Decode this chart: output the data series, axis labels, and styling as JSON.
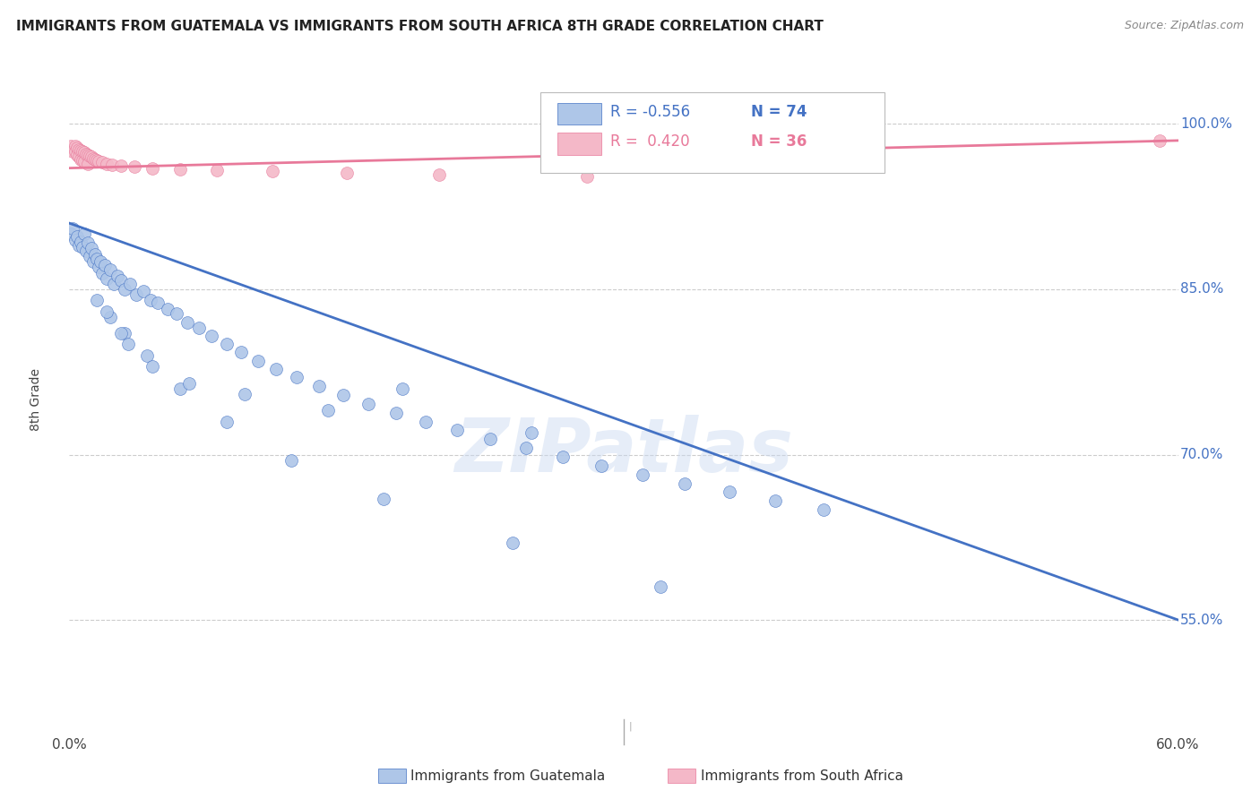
{
  "title": "IMMIGRANTS FROM GUATEMALA VS IMMIGRANTS FROM SOUTH AFRICA 8TH GRADE CORRELATION CHART",
  "source_text": "Source: ZipAtlas.com",
  "xlabel_bottom_left": "0.0%",
  "xlabel_bottom_right": "60.0%",
  "ylabel": "8th Grade",
  "y_ticks": [
    0.55,
    0.7,
    0.85,
    1.0
  ],
  "y_tick_labels": [
    "55.0%",
    "70.0%",
    "85.0%",
    "100.0%"
  ],
  "x_range": [
    0.0,
    0.6
  ],
  "y_range": [
    0.46,
    1.04
  ],
  "blue_label": "Immigrants from Guatemala",
  "pink_label": "Immigrants from South Africa",
  "blue_R": "-0.556",
  "blue_N": "74",
  "pink_R": "0.420",
  "pink_N": "36",
  "blue_color": "#aec6e8",
  "pink_color": "#f4b8c8",
  "blue_line_color": "#4472c4",
  "pink_line_color": "#e8799a",
  "blue_scatter_x": [
    0.001,
    0.002,
    0.003,
    0.004,
    0.005,
    0.006,
    0.007,
    0.008,
    0.009,
    0.01,
    0.011,
    0.012,
    0.013,
    0.014,
    0.015,
    0.016,
    0.017,
    0.018,
    0.019,
    0.02,
    0.022,
    0.024,
    0.026,
    0.028,
    0.03,
    0.033,
    0.036,
    0.04,
    0.044,
    0.048,
    0.053,
    0.058,
    0.064,
    0.07,
    0.077,
    0.085,
    0.093,
    0.102,
    0.112,
    0.123,
    0.135,
    0.148,
    0.162,
    0.177,
    0.193,
    0.21,
    0.228,
    0.247,
    0.267,
    0.288,
    0.31,
    0.333,
    0.357,
    0.382,
    0.408,
    0.015,
    0.022,
    0.03,
    0.042,
    0.06,
    0.085,
    0.12,
    0.17,
    0.24,
    0.32,
    0.25,
    0.18,
    0.14,
    0.095,
    0.065,
    0.045,
    0.032,
    0.028,
    0.02
  ],
  "blue_scatter_y": [
    0.9,
    0.905,
    0.895,
    0.898,
    0.89,
    0.893,
    0.888,
    0.9,
    0.885,
    0.892,
    0.88,
    0.887,
    0.875,
    0.882,
    0.878,
    0.87,
    0.875,
    0.865,
    0.872,
    0.86,
    0.868,
    0.855,
    0.862,
    0.858,
    0.85,
    0.855,
    0.845,
    0.848,
    0.84,
    0.838,
    0.832,
    0.828,
    0.82,
    0.815,
    0.808,
    0.8,
    0.793,
    0.785,
    0.778,
    0.77,
    0.762,
    0.754,
    0.746,
    0.738,
    0.73,
    0.722,
    0.714,
    0.706,
    0.698,
    0.69,
    0.682,
    0.674,
    0.666,
    0.658,
    0.65,
    0.84,
    0.825,
    0.81,
    0.79,
    0.76,
    0.73,
    0.695,
    0.66,
    0.62,
    0.58,
    0.72,
    0.76,
    0.74,
    0.755,
    0.765,
    0.78,
    0.8,
    0.81,
    0.83
  ],
  "pink_scatter_x": [
    0.001,
    0.002,
    0.003,
    0.003,
    0.004,
    0.004,
    0.005,
    0.005,
    0.006,
    0.006,
    0.007,
    0.007,
    0.008,
    0.008,
    0.009,
    0.01,
    0.01,
    0.011,
    0.012,
    0.013,
    0.014,
    0.015,
    0.016,
    0.018,
    0.02,
    0.023,
    0.028,
    0.035,
    0.045,
    0.06,
    0.08,
    0.11,
    0.15,
    0.2,
    0.28,
    0.59
  ],
  "pink_scatter_y": [
    0.98,
    0.975,
    0.98,
    0.975,
    0.978,
    0.972,
    0.977,
    0.97,
    0.976,
    0.968,
    0.975,
    0.967,
    0.974,
    0.966,
    0.973,
    0.972,
    0.964,
    0.971,
    0.97,
    0.969,
    0.968,
    0.967,
    0.966,
    0.965,
    0.964,
    0.963,
    0.962,
    0.961,
    0.96,
    0.959,
    0.958,
    0.957,
    0.956,
    0.954,
    0.952,
    0.985
  ],
  "blue_trend_x": [
    0.0,
    0.6
  ],
  "blue_trend_y": [
    0.91,
    0.55
  ],
  "pink_trend_x": [
    0.0,
    0.6
  ],
  "pink_trend_y": [
    0.96,
    0.985
  ],
  "watermark": "ZIPatlas",
  "bg_color": "#ffffff",
  "grid_color": "#cccccc"
}
